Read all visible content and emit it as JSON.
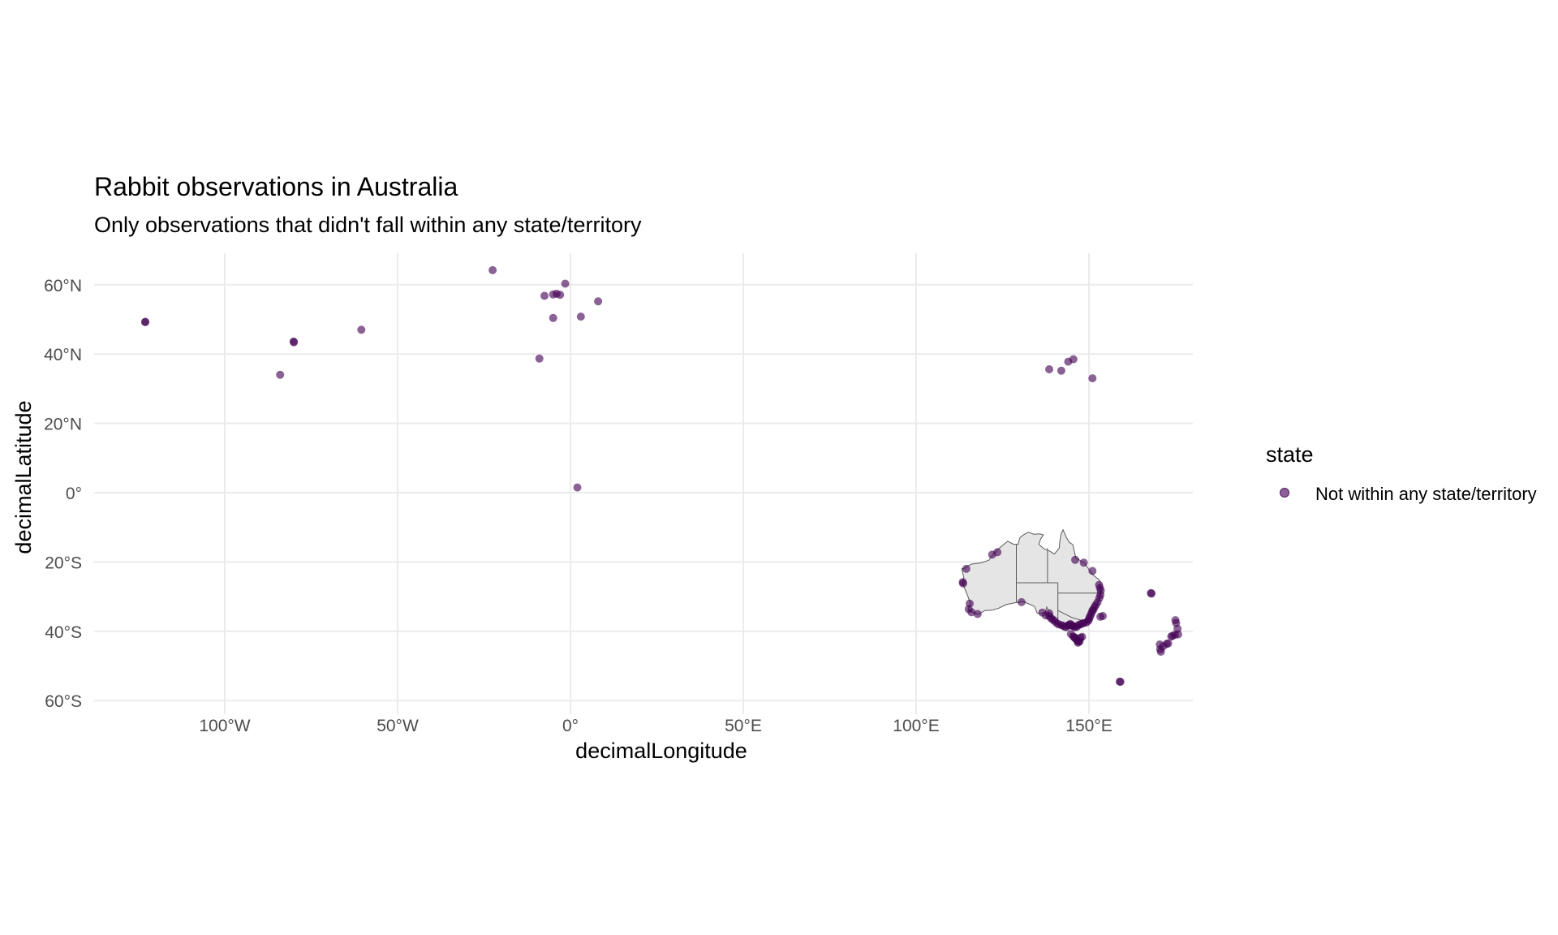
{
  "chart_data": {
    "type": "scatter",
    "title": "Rabbit observations in Australia",
    "subtitle": "Only observations that didn't fall within any state/territory",
    "xlabel": "decimalLongitude",
    "ylabel": "decimalLatitude",
    "xlim": [
      -138,
      180
    ],
    "ylim": [
      -62,
      71
    ],
    "x_ticks": [
      {
        "value": -100,
        "label": "100°W"
      },
      {
        "value": -50,
        "label": "50°W"
      },
      {
        "value": 0,
        "label": "0°"
      },
      {
        "value": 50,
        "label": "50°E"
      },
      {
        "value": 100,
        "label": "100°E"
      },
      {
        "value": 150,
        "label": "150°E"
      }
    ],
    "y_ticks": [
      {
        "value": 60,
        "label": "60°N"
      },
      {
        "value": 40,
        "label": "40°N"
      },
      {
        "value": 20,
        "label": "20°N"
      },
      {
        "value": 0,
        "label": "0°"
      },
      {
        "value": -20,
        "label": "20°S"
      },
      {
        "value": -40,
        "label": "40°S"
      },
      {
        "value": -60,
        "label": "60°S"
      }
    ],
    "grid": true,
    "legend": {
      "title": "state",
      "position": "right",
      "entries": [
        "Not within any state/territory"
      ]
    },
    "colors": {
      "point": "#440154",
      "australia_fill": "#e5e5e5",
      "australia_border": "#5a5a5a",
      "grid": "#ebebeb"
    },
    "basemap": "Australia states and territories",
    "series": [
      {
        "name": "Not within any state/territory",
        "points": [
          [
            -123.0,
            49.2
          ],
          [
            -123.0,
            49.3
          ],
          [
            -80.0,
            43.4
          ],
          [
            -80.1,
            43.6
          ],
          [
            -84.0,
            34.0
          ],
          [
            -60.5,
            47.0
          ],
          [
            -22.5,
            64.2
          ],
          [
            -7.5,
            56.8
          ],
          [
            -5.0,
            57.2
          ],
          [
            -4.0,
            57.4
          ],
          [
            -3.0,
            57.1
          ],
          [
            -1.5,
            60.3
          ],
          [
            -5.0,
            50.4
          ],
          [
            3.0,
            50.8
          ],
          [
            8.0,
            55.2
          ],
          [
            -9.0,
            38.7
          ],
          [
            2.0,
            1.5
          ],
          [
            138.5,
            35.6
          ],
          [
            142.0,
            35.2
          ],
          [
            144.0,
            37.8
          ],
          [
            145.5,
            38.5
          ],
          [
            151.0,
            33.0
          ],
          [
            114.5,
            -22.0
          ],
          [
            113.5,
            -25.8
          ],
          [
            113.6,
            -26.2
          ],
          [
            115.5,
            -32.0
          ],
          [
            115.2,
            -33.6
          ],
          [
            116.0,
            -34.5
          ],
          [
            117.8,
            -35.0
          ],
          [
            122.0,
            -17.9
          ],
          [
            123.5,
            -17.2
          ],
          [
            130.5,
            -31.6
          ],
          [
            136.5,
            -34.6
          ],
          [
            137.5,
            -35.4
          ],
          [
            138.5,
            -34.8
          ],
          [
            138.5,
            -35.6
          ],
          [
            139.0,
            -36.2
          ],
          [
            139.5,
            -36.6
          ],
          [
            140.0,
            -37.0
          ],
          [
            140.6,
            -37.6
          ],
          [
            141.2,
            -38.0
          ],
          [
            142.0,
            -38.2
          ],
          [
            142.5,
            -38.4
          ],
          [
            143.0,
            -38.7
          ],
          [
            143.5,
            -38.8
          ],
          [
            144.0,
            -38.3
          ],
          [
            144.3,
            -38.1
          ],
          [
            144.6,
            -37.9
          ],
          [
            145.0,
            -38.3
          ],
          [
            145.3,
            -38.5
          ],
          [
            145.6,
            -38.6
          ],
          [
            146.0,
            -38.8
          ],
          [
            146.5,
            -38.7
          ],
          [
            147.0,
            -38.2
          ],
          [
            147.5,
            -38.0
          ],
          [
            148.0,
            -37.8
          ],
          [
            148.5,
            -37.6
          ],
          [
            149.2,
            -37.5
          ],
          [
            149.8,
            -37.0
          ],
          [
            150.0,
            -36.5
          ],
          [
            150.2,
            -35.9
          ],
          [
            150.5,
            -35.3
          ],
          [
            150.8,
            -34.6
          ],
          [
            151.0,
            -34.0
          ],
          [
            151.3,
            -33.7
          ],
          [
            151.6,
            -33.0
          ],
          [
            152.0,
            -32.4
          ],
          [
            152.5,
            -31.6
          ],
          [
            153.0,
            -30.4
          ],
          [
            153.3,
            -29.5
          ],
          [
            153.4,
            -28.3
          ],
          [
            153.2,
            -27.5
          ],
          [
            152.9,
            -26.6
          ],
          [
            151.0,
            -22.6
          ],
          [
            148.5,
            -20.2
          ],
          [
            146.0,
            -19.4
          ],
          [
            145.5,
            -41.5
          ],
          [
            146.0,
            -42.0
          ],
          [
            146.5,
            -42.5
          ],
          [
            147.0,
            -43.0
          ],
          [
            147.3,
            -42.9
          ],
          [
            147.5,
            -42.0
          ],
          [
            148.0,
            -41.6
          ],
          [
            146.8,
            -43.3
          ],
          [
            145.8,
            -41.8
          ],
          [
            144.8,
            -40.8
          ],
          [
            153.3,
            -35.8
          ],
          [
            154.0,
            -35.6
          ],
          [
            158.9,
            -54.5
          ],
          [
            159.1,
            -54.6
          ],
          [
            167.9,
            -29.0
          ],
          [
            168.1,
            -29.1
          ],
          [
            170.5,
            -43.8
          ],
          [
            170.6,
            -45.2
          ],
          [
            170.8,
            -45.9
          ],
          [
            171.5,
            -44.3
          ],
          [
            172.5,
            -43.6
          ],
          [
            172.9,
            -43.5
          ],
          [
            173.8,
            -41.5
          ],
          [
            174.2,
            -41.3
          ],
          [
            174.9,
            -41.0
          ],
          [
            175.0,
            -36.8
          ],
          [
            175.2,
            -37.6
          ],
          [
            175.6,
            -39.3
          ],
          [
            175.8,
            -40.9
          ]
        ]
      }
    ]
  }
}
